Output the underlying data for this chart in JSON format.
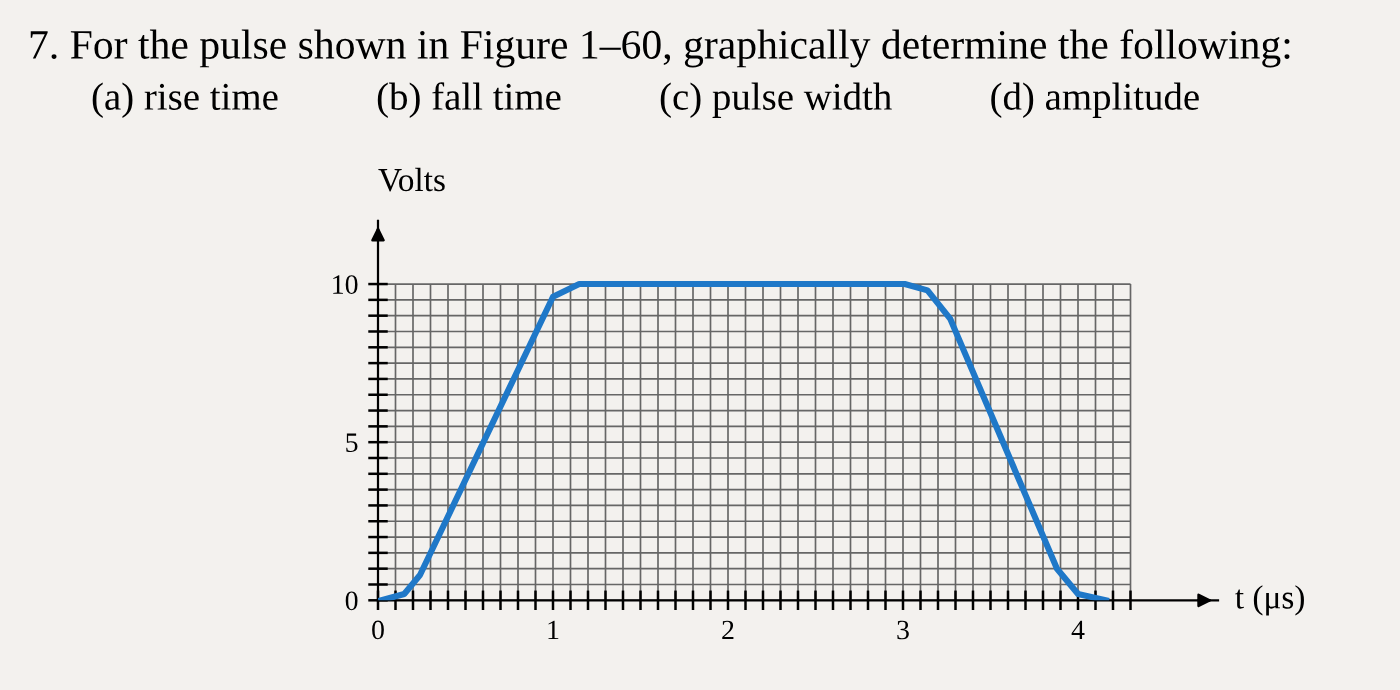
{
  "chart_data": {
    "type": "line",
    "title": "7. For the pulse shown in Figure 1–60, graphically determine the following:",
    "subtitle": "(a) rise time          (b) fall time          (c) pulse width          (d) amplitude",
    "xlabel": "t (μs)",
    "ylabel": "Volts",
    "x": [
      0.02,
      0.15,
      0.24,
      1.0,
      1.15,
      3.01,
      3.14,
      3.27,
      3.88,
      4.0,
      4.16
    ],
    "series": [
      {
        "color": "#1f78c8",
        "values": [
          0,
          0.2,
          0.8,
          9.6,
          10,
          10,
          9.8,
          8.9,
          1.0,
          0.2,
          0
        ]
      }
    ],
    "xlim": [
      0,
      4.8
    ],
    "ylim": [
      0,
      12
    ],
    "xticks": [
      0,
      {
        "value": 0.1,
        "label": null
      },
      {
        "value": 0.2,
        "label": null
      },
      {
        "value": 0.3,
        "label": null
      },
      {
        "value": 0.4,
        "label": null
      },
      {
        "value": 0.5,
        "label": null
      },
      {
        "value": 0.6,
        "label": null
      },
      {
        "value": 0.7,
        "label": null
      },
      {
        "value": 0.8,
        "label": null
      },
      {
        "value": 0.9,
        "label": null
      },
      1,
      {
        "value": 1.1,
        "label": null
      },
      {
        "value": 1.2,
        "label": null
      },
      {
        "value": 1.3,
        "label": null
      },
      {
        "value": 1.4,
        "label": null
      },
      {
        "value": 1.5,
        "label": null
      },
      {
        "value": 1.6,
        "label": null
      },
      {
        "value": 1.7,
        "label": null
      },
      {
        "value": 1.8,
        "label": null
      },
      {
        "value": 1.9,
        "label": null
      },
      2,
      {
        "value": 2.1,
        "label": null
      },
      {
        "value": 2.2,
        "label": null
      },
      {
        "value": 2.3,
        "label": null
      },
      {
        "value": 2.4,
        "label": null
      },
      {
        "value": 2.5,
        "label": null
      },
      {
        "value": 2.6,
        "label": null
      },
      {
        "value": 2.7,
        "label": null
      },
      {
        "value": 2.8,
        "label": null
      },
      {
        "value": 2.9,
        "label": null
      },
      3,
      {
        "value": 3.1,
        "label": null
      },
      {
        "value": 3.2,
        "label": null
      },
      {
        "value": 3.3,
        "label": null
      },
      {
        "value": 3.4,
        "label": null
      },
      {
        "value": 3.5,
        "label": null
      },
      {
        "value": 3.6,
        "label": null
      },
      {
        "value": 3.7,
        "label": null
      },
      {
        "value": 3.8,
        "label": null
      },
      {
        "value": 3.9,
        "label": null
      },
      4,
      {
        "value": 4.1,
        "label": null
      },
      {
        "value": 4.2,
        "label": null
      },
      {
        "value": 4.3,
        "label": null
      }
    ],
    "yticks": [
      0,
      {
        "value": 0.5,
        "label": null
      },
      {
        "value": 1,
        "label": null
      },
      {
        "value": 1.5,
        "label": null
      },
      {
        "value": 2,
        "label": null
      },
      {
        "value": 2.5,
        "label": null
      },
      {
        "value": 3,
        "label": null
      },
      {
        "value": 3.5,
        "label": null
      },
      {
        "value": 4,
        "label": null
      },
      {
        "value": 4.5,
        "label": null
      },
      5,
      {
        "value": 5.5,
        "label": null
      },
      {
        "value": 6,
        "label": null
      },
      {
        "value": 6.5,
        "label": null
      },
      {
        "value": 7,
        "label": null
      },
      {
        "value": 7.5,
        "label": null
      },
      {
        "value": 8,
        "label": null
      },
      {
        "value": 8.5,
        "label": null
      },
      {
        "value": 9,
        "label": null
      },
      {
        "value": 9.5,
        "label": null
      },
      10
    ],
    "grid": true,
    "marker": "none",
    "line_style": "solid"
  }
}
